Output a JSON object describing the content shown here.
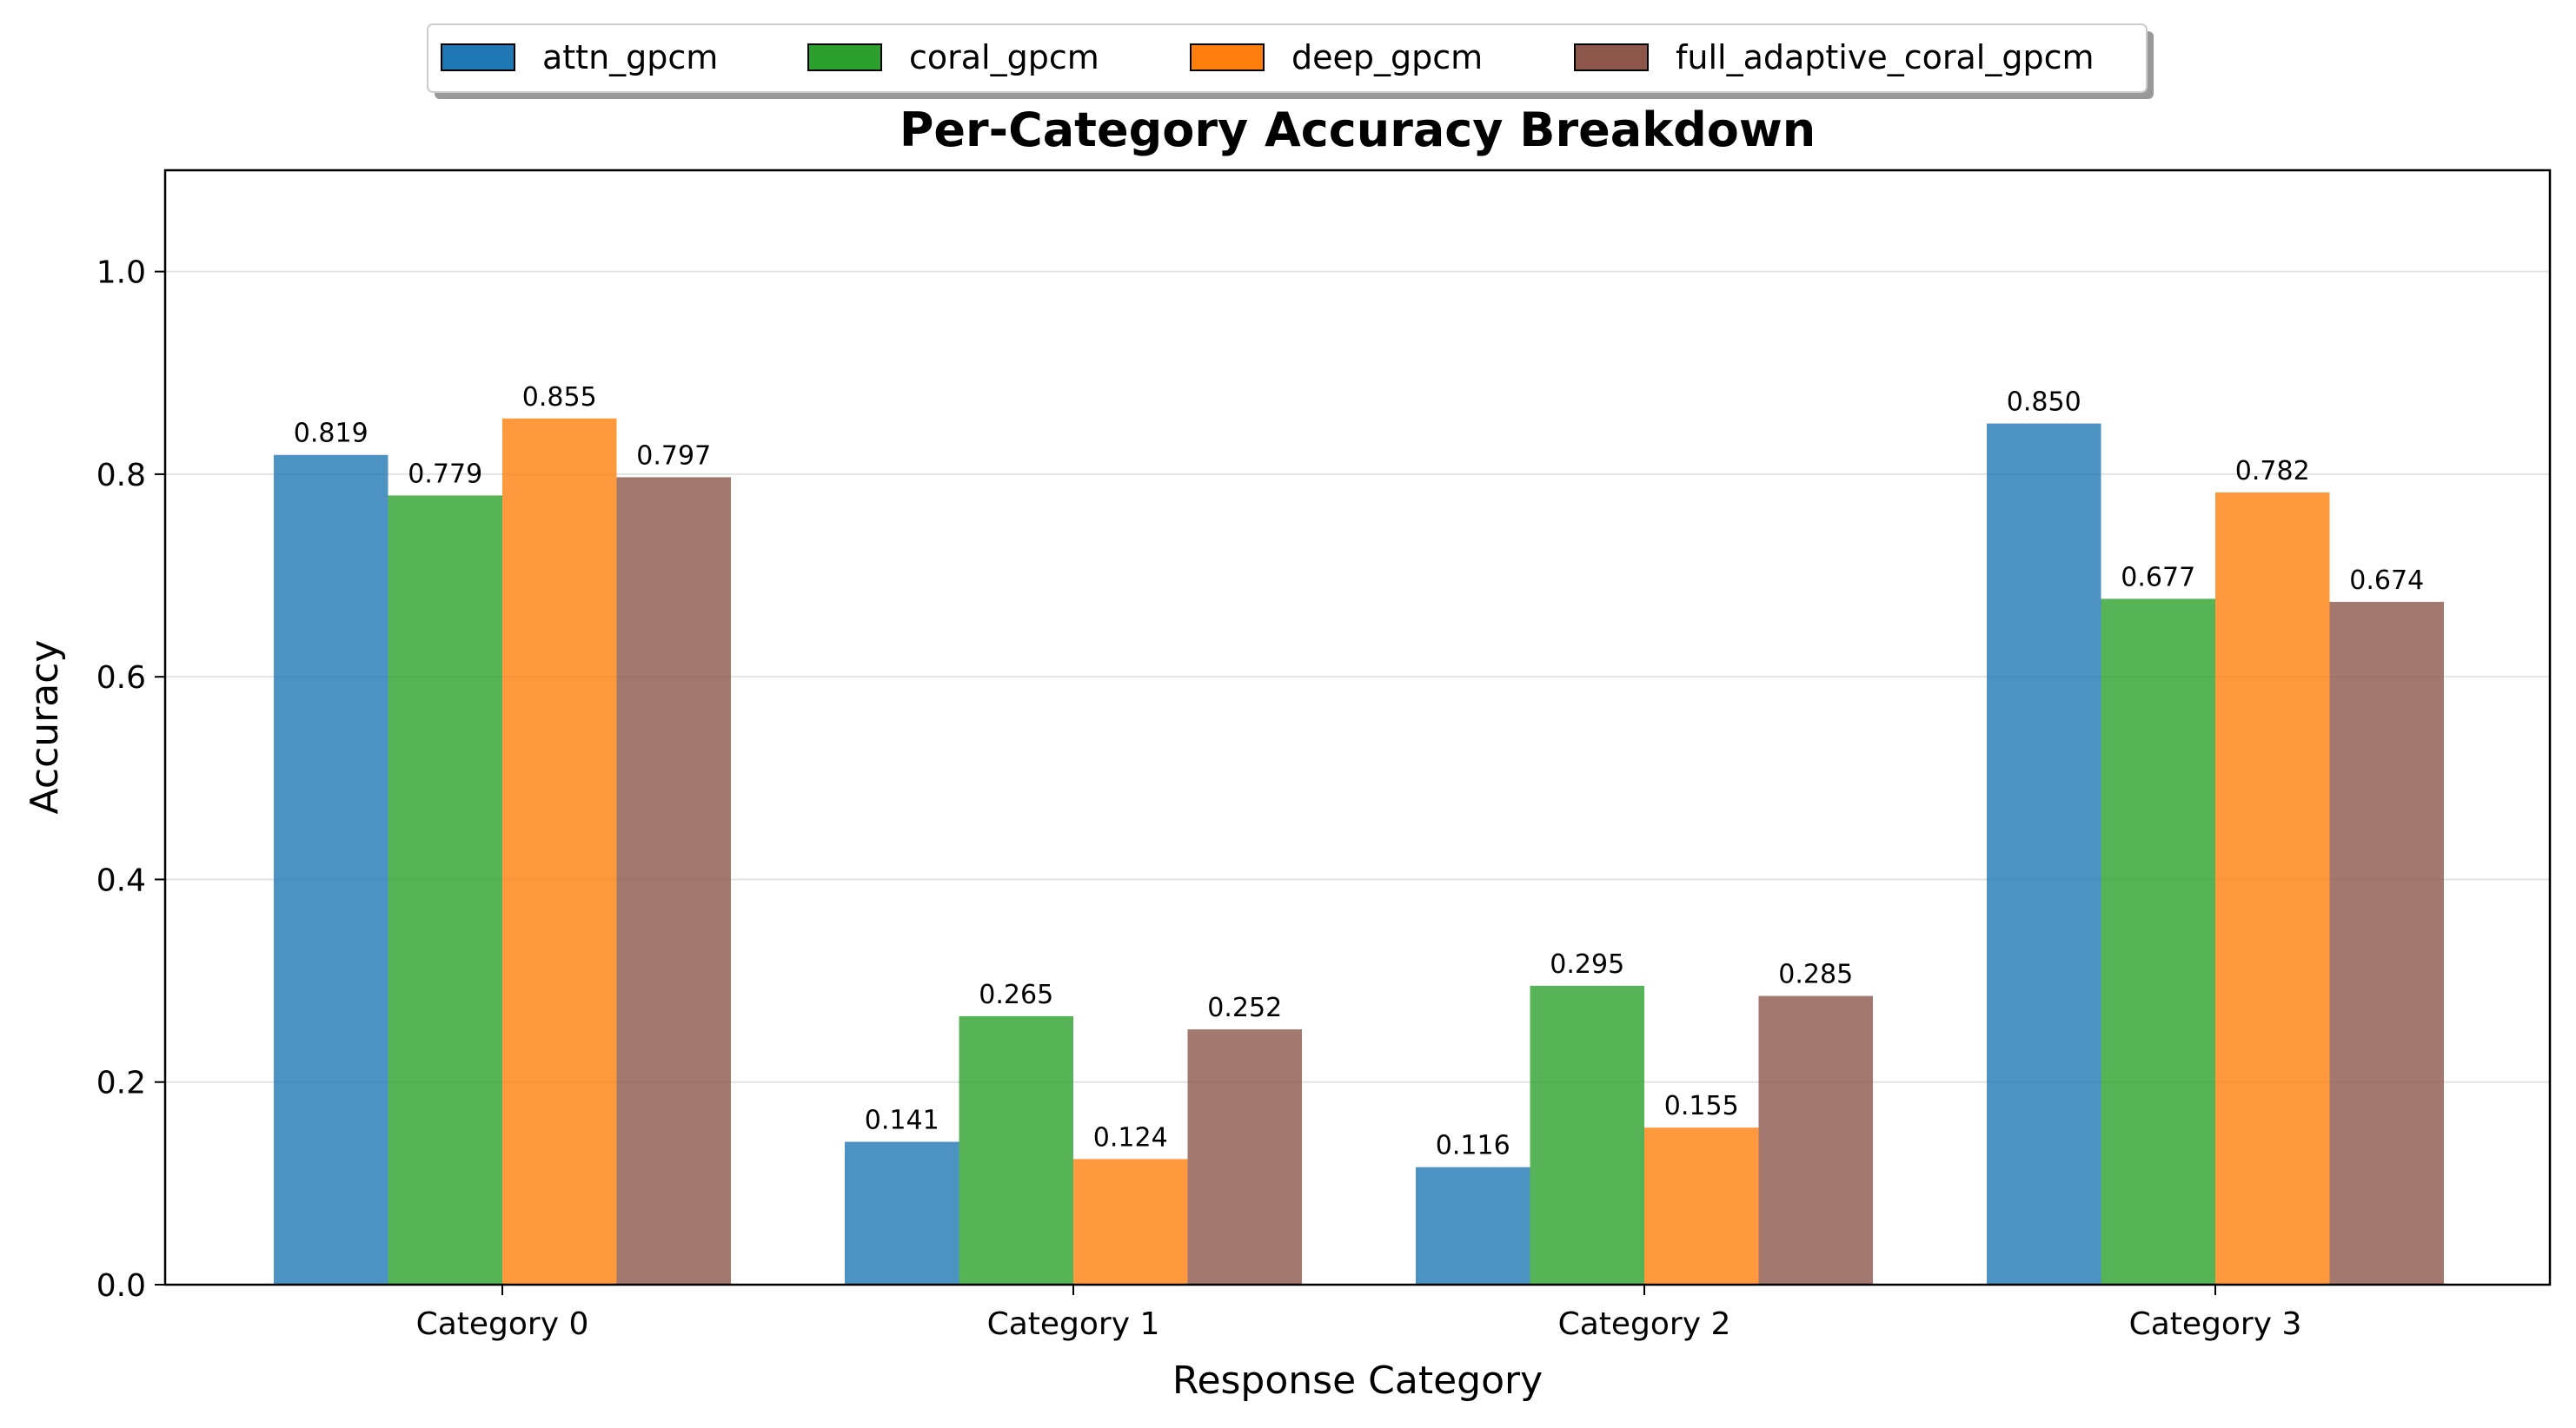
{
  "chart_data": {
    "type": "bar",
    "title": "Per-Category Accuracy Breakdown",
    "xlabel": "Response Category",
    "ylabel": "Accuracy",
    "ylim": [
      0,
      1.1
    ],
    "yticks": [
      0.0,
      0.2,
      0.4,
      0.6,
      0.8,
      1.0
    ],
    "ytick_labels": [
      "0.0",
      "0.2",
      "0.4",
      "0.6",
      "0.8",
      "1.0"
    ],
    "grid": "horizontal",
    "legend_position": "top-center",
    "categories": [
      "Category 0",
      "Category 1",
      "Category 2",
      "Category 3"
    ],
    "series": [
      {
        "name": "attn_gpcm",
        "color": "#1f77b4",
        "values": [
          0.819,
          0.141,
          0.116,
          0.85
        ],
        "labels": [
          "0.819",
          "0.141",
          "0.116",
          "0.850"
        ]
      },
      {
        "name": "coral_gpcm",
        "color": "#2ca02c",
        "values": [
          0.779,
          0.265,
          0.295,
          0.677
        ],
        "labels": [
          "0.779",
          "0.265",
          "0.295",
          "0.677"
        ]
      },
      {
        "name": "deep_gpcm",
        "color": "#ff7f0e",
        "values": [
          0.855,
          0.124,
          0.155,
          0.782
        ],
        "labels": [
          "0.855",
          "0.124",
          "0.155",
          "0.782"
        ]
      },
      {
        "name": "full_adaptive_coral_gpcm",
        "color": "#8c564b",
        "values": [
          0.797,
          0.252,
          0.285,
          0.674
        ],
        "labels": [
          "0.797",
          "0.252",
          "0.285",
          "0.674"
        ]
      }
    ]
  }
}
